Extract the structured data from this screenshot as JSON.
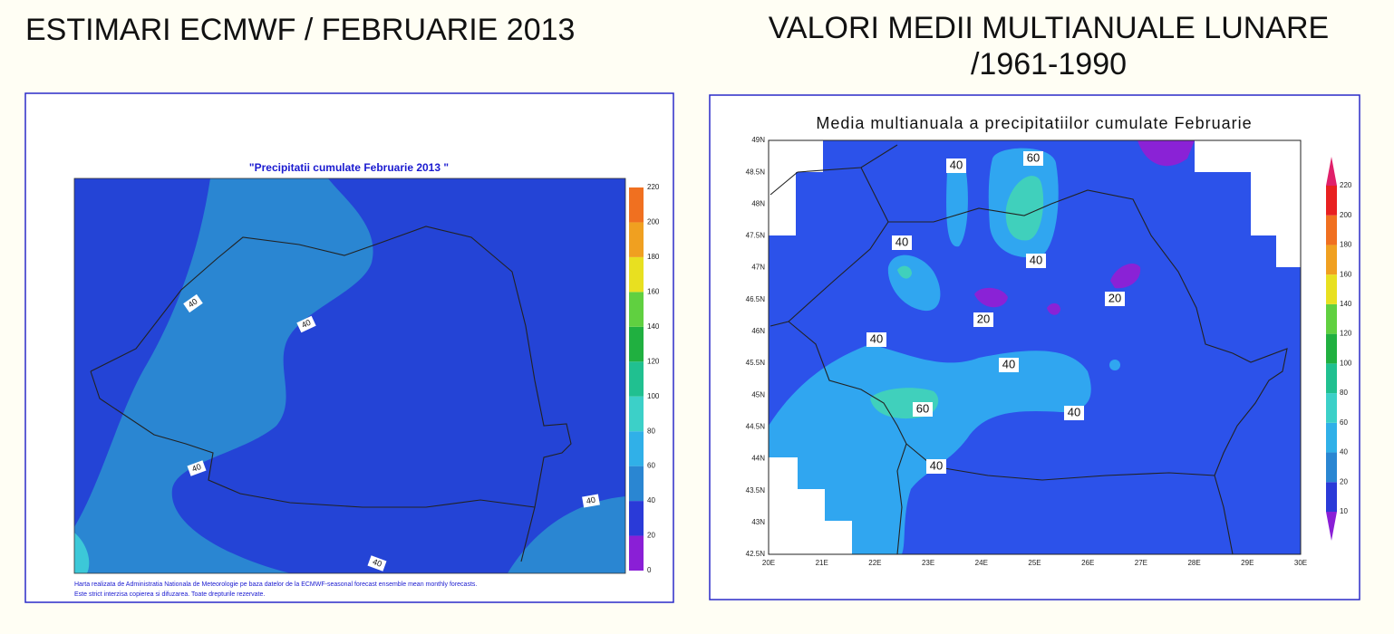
{
  "left": {
    "heading": "ESTIMARI ECMWF / FEBRUARIE 2013",
    "map_title": "\"Precipitatii cumulate Februarie 2013 \"",
    "colorbar_labels": [
      "0",
      "20",
      "40",
      "60",
      "80",
      "100",
      "120",
      "140",
      "160",
      "180",
      "200",
      "220"
    ],
    "contour_labels": [
      "40",
      "40",
      "40",
      "40",
      "40"
    ],
    "footnote": [
      "Harta realizata de Administratia Nationala de Meteorologie pe baza datelor de la ECMWF-seasonal forecast ensemble mean monthly forecasts.",
      "Este strict interzisa copierea si difuzarea. Toate drepturile rezervate."
    ]
  },
  "right": {
    "heading": [
      "VALORI MEDII MULTIANUALE LUNARE",
      "/1961-1990"
    ],
    "map_title": "Media multianuala a precipitatiilor cumulate Februarie",
    "colorbar_labels": [
      "10",
      "20",
      "40",
      "60",
      "80",
      "100",
      "120",
      "140",
      "160",
      "180",
      "200",
      "220"
    ],
    "contour_labels": [
      "40",
      "60",
      "40",
      "40",
      "20",
      "20",
      "40",
      "40",
      "60",
      "40",
      "40"
    ],
    "lat_labels": [
      "49N",
      "48.5N",
      "48N",
      "47.5N",
      "47N",
      "46.5N",
      "46N",
      "45.5N",
      "45N",
      "44.5N",
      "44N",
      "43.5N",
      "43N",
      "42.5N"
    ],
    "lon_labels": [
      "20E",
      "21E",
      "22E",
      "23E",
      "24E",
      "25E",
      "26E",
      "27E",
      "28E",
      "29E",
      "30E"
    ]
  }
}
